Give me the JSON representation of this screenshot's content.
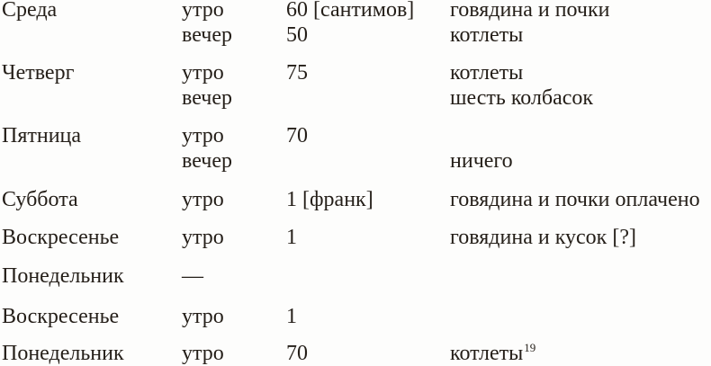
{
  "page": {
    "kind": "book-page-scan",
    "background_color": "#fdfdfc",
    "text_color": "#241e18"
  },
  "table": {
    "rows": [
      {
        "day": "Среда",
        "time": "утро",
        "amount": "60 [сантимов]",
        "food": "говядина и почки"
      },
      {
        "day": "",
        "time": "вечер",
        "amount": "50",
        "food": "котлеты"
      },
      {
        "day": "Четверг",
        "time": "утро",
        "amount": "75",
        "food": "котлеты"
      },
      {
        "day": "",
        "time": "вечер",
        "amount": "",
        "food": "шесть колбасок"
      },
      {
        "day": "Пятница",
        "time": "утро",
        "amount": "70",
        "food": ""
      },
      {
        "day": "",
        "time": "вечер",
        "amount": "",
        "food": "ничего"
      },
      {
        "day": "Суббота",
        "time": "утро",
        "amount": "1 [франк]",
        "food": "говядина и почки оплачено"
      },
      {
        "day": "Воскресенье",
        "time": "утро",
        "amount": "1",
        "food": "говядина и кусок [?]"
      },
      {
        "day": "Понедельник",
        "time": "—",
        "amount": "",
        "food": ""
      },
      {
        "day": "Воскресенье",
        "time": "утро",
        "amount": "1",
        "food": ""
      },
      {
        "day": "Понедельник",
        "time": "утро",
        "amount": "70",
        "food": "котлеты",
        "food_note": "19"
      }
    ]
  }
}
